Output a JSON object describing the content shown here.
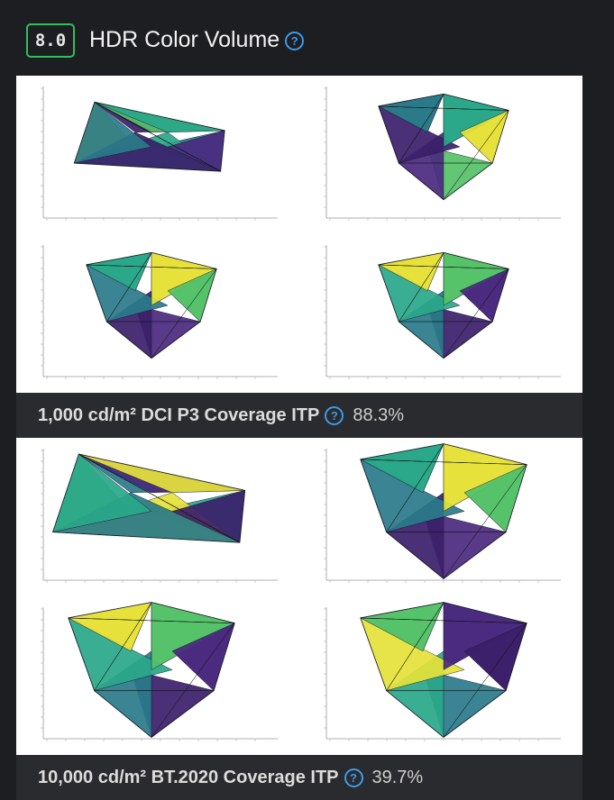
{
  "header": {
    "score": "8.0",
    "title": "HDR Color Volume"
  },
  "items": [
    {
      "label": "1,000 cd/m² DCI P3 Coverage ITP",
      "value": "88.3%"
    },
    {
      "label": "10,000 cd/m² BT.2020 Coverage ITP",
      "value": "39.7%"
    }
  ]
}
